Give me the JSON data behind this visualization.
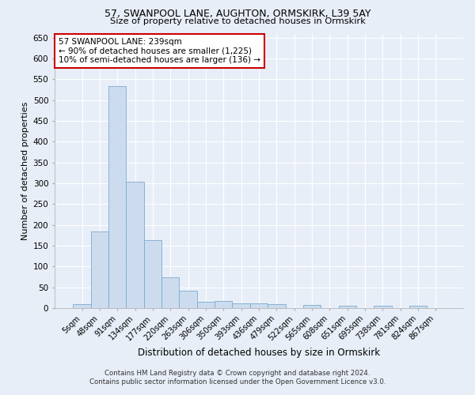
{
  "title1": "57, SWANPOOL LANE, AUGHTON, ORMSKIRK, L39 5AY",
  "title2": "Size of property relative to detached houses in Ormskirk",
  "xlabel": "Distribution of detached houses by size in Ormskirk",
  "ylabel": "Number of detached properties",
  "categories": [
    "5sqm",
    "48sqm",
    "91sqm",
    "134sqm",
    "177sqm",
    "220sqm",
    "263sqm",
    "306sqm",
    "350sqm",
    "393sqm",
    "436sqm",
    "479sqm",
    "522sqm",
    "565sqm",
    "608sqm",
    "651sqm",
    "695sqm",
    "738sqm",
    "781sqm",
    "824sqm",
    "867sqm"
  ],
  "values": [
    10,
    185,
    533,
    303,
    163,
    74,
    41,
    16,
    18,
    11,
    11,
    9,
    0,
    7,
    0,
    5,
    0,
    5,
    0,
    5,
    0
  ],
  "bar_color": "#ccdcee",
  "bar_edge_color": "#7aaacf",
  "ylim": [
    0,
    660
  ],
  "yticks": [
    0,
    50,
    100,
    150,
    200,
    250,
    300,
    350,
    400,
    450,
    500,
    550,
    600,
    650
  ],
  "annotation_title": "57 SWANPOOL LANE: 239sqm",
  "annotation_line1": "← 90% of detached houses are smaller (1,225)",
  "annotation_line2": "10% of semi-detached houses are larger (136) →",
  "annotation_box_color": "#ffffff",
  "annotation_box_edge_color": "#cc0000",
  "background_color": "#e8eef8",
  "grid_color": "#ffffff",
  "footer1": "Contains HM Land Registry data © Crown copyright and database right 2024.",
  "footer2": "Contains public sector information licensed under the Open Government Licence v3.0."
}
